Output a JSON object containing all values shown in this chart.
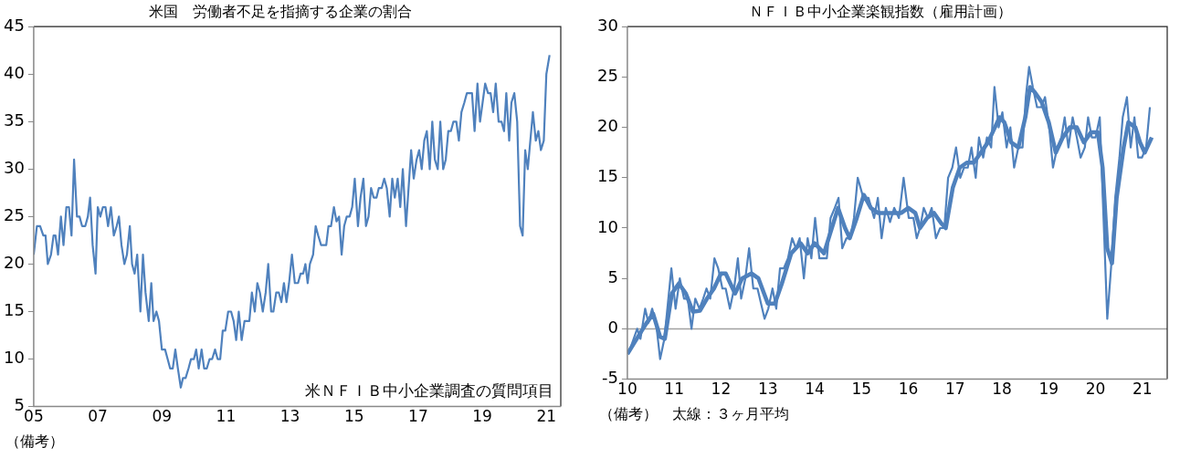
{
  "chart_data": [
    {
      "type": "line",
      "title": "米国　労働者不足を指摘する企業の割合",
      "annotations": [
        "米ＮＦＩＢ中小企業調査の質問項目",
        "（備考）"
      ],
      "xlim": [
        2005,
        2021.45
      ],
      "xticks": [
        {
          "value": 2005,
          "label": "05"
        },
        {
          "value": 2007,
          "label": "07"
        },
        {
          "value": 2009,
          "label": "09"
        },
        {
          "value": 2011,
          "label": "11"
        },
        {
          "value": 2013,
          "label": "13"
        },
        {
          "value": 2015,
          "label": "15"
        },
        {
          "value": 2017,
          "label": "17"
        },
        {
          "value": 2019,
          "label": "19"
        },
        {
          "value": 2021,
          "label": "21"
        }
      ],
      "ylim": [
        5,
        45
      ],
      "yticks": [
        5,
        10,
        15,
        20,
        25,
        30,
        35,
        40,
        45
      ],
      "series": [
        {
          "color": "#4f81bd",
          "x": [
            2005.0,
            2005.1,
            2005.2,
            2005.3,
            2005.37,
            2005.44,
            2005.54,
            2005.62,
            2005.68,
            2005.76,
            2005.85,
            2005.93,
            2006.02,
            2006.1,
            2006.18,
            2006.26,
            2006.35,
            2006.43,
            2006.51,
            2006.61,
            2006.69,
            2006.76,
            2006.84,
            2006.93,
            2007.0,
            2007.08,
            2007.16,
            2007.24,
            2007.32,
            2007.41,
            2007.5,
            2007.59,
            2007.66,
            2007.74,
            2007.83,
            2007.91,
            2008.0,
            2008.07,
            2008.15,
            2008.23,
            2008.33,
            2008.41,
            2008.49,
            2008.59,
            2008.67,
            2008.74,
            2008.83,
            2008.91,
            2009.0,
            2009.1,
            2009.18,
            2009.26,
            2009.34,
            2009.42,
            2009.5,
            2009.59,
            2009.66,
            2009.74,
            2009.83,
            2009.91,
            2010.0,
            2010.07,
            2010.15,
            2010.24,
            2010.32,
            2010.4,
            2010.49,
            2010.57,
            2010.66,
            2010.74,
            2010.82,
            2010.9,
            2010.98,
            2011.07,
            2011.16,
            2011.24,
            2011.32,
            2011.4,
            2011.49,
            2011.58,
            2011.66,
            2011.73,
            2011.81,
            2011.9,
            2011.98,
            2012.06,
            2012.15,
            2012.24,
            2012.32,
            2012.41,
            2012.48,
            2012.57,
            2012.65,
            2012.73,
            2012.81,
            2012.89,
            2012.97,
            2013.06,
            2013.15,
            2013.25,
            2013.33,
            2013.41,
            2013.48,
            2013.55,
            2013.62,
            2013.72,
            2013.8,
            2013.88,
            2013.97,
            2014.13,
            2014.2,
            2014.28,
            2014.37,
            2014.45,
            2014.53,
            2014.61,
            2014.69,
            2014.77,
            2014.86,
            2014.94,
            2015.02,
            2015.12,
            2015.2,
            2015.29,
            2015.37,
            2015.45,
            2015.53,
            2015.61,
            2015.7,
            2015.77,
            2015.86,
            2015.94,
            2016.02,
            2016.11,
            2016.19,
            2016.27,
            2016.36,
            2016.44,
            2016.52,
            2016.62,
            2016.7,
            2016.78,
            2016.86,
            2016.95,
            2017.03,
            2017.11,
            2017.19,
            2017.27,
            2017.36,
            2017.44,
            2017.52,
            2017.61,
            2017.69,
            2017.78,
            2017.86,
            2017.94,
            2018.02,
            2018.1,
            2018.19,
            2018.27,
            2018.35,
            2018.44,
            2018.52,
            2018.6,
            2018.68,
            2018.76,
            2018.85,
            2018.93,
            2019.01,
            2019.09,
            2019.18,
            2019.26,
            2019.34,
            2019.42,
            2019.51,
            2019.6,
            2019.68,
            2019.75,
            2019.84,
            2019.91,
            2020.0,
            2020.09,
            2020.18,
            2020.26,
            2020.34,
            2020.42,
            2020.5,
            2020.58,
            2020.67,
            2020.75,
            2020.83,
            2020.92,
            2021.0,
            2021.1
          ],
          "values": [
            21,
            24,
            24,
            23,
            23,
            20,
            21,
            23,
            23,
            21,
            25,
            22,
            26,
            26,
            23,
            31,
            25,
            25,
            24,
            24,
            25,
            27,
            22,
            19,
            26,
            25,
            26,
            26,
            24,
            26,
            23,
            24,
            25,
            22,
            20,
            21,
            24,
            20,
            19,
            21,
            15,
            21,
            17,
            14,
            18,
            14,
            15,
            14,
            11,
            11,
            10,
            9,
            9,
            11,
            9,
            7,
            8,
            8,
            9,
            10,
            10,
            11,
            9,
            11,
            9,
            9,
            10,
            10,
            11,
            10,
            10,
            13,
            13,
            15,
            15,
            14,
            12,
            15,
            12,
            14,
            14,
            14,
            17,
            15,
            18,
            17,
            15,
            17,
            20,
            15,
            15,
            17,
            17,
            16,
            18,
            16,
            18,
            21,
            18,
            18,
            19,
            19,
            20,
            18,
            20,
            21,
            24,
            23,
            22,
            22,
            24,
            24,
            26,
            24.5,
            25,
            21,
            24,
            25,
            25,
            26,
            29,
            24,
            27,
            29,
            24,
            25,
            28,
            27,
            27,
            28,
            28,
            29,
            28,
            25,
            29,
            27,
            29,
            26,
            30,
            24,
            28,
            32,
            29,
            31,
            32,
            30,
            33,
            34,
            30,
            35,
            31,
            30,
            35,
            30,
            31,
            34,
            34,
            35,
            35,
            33,
            36,
            37,
            38,
            38,
            38,
            34,
            39,
            35,
            37,
            39,
            38,
            38,
            36,
            39,
            35,
            35,
            34,
            38,
            33,
            37,
            38,
            35,
            24,
            23,
            32,
            30,
            33,
            36,
            33,
            34,
            32,
            33,
            40,
            42
          ]
        }
      ]
    },
    {
      "type": "line",
      "title": "ＮＦＩＢ中小企業楽観指数（雇用計画）",
      "annotations": [
        "（備考）　太線：３ヶ月平均"
      ],
      "xlim": [
        2010,
        2021.53
      ],
      "xticks": [
        {
          "value": 2010,
          "label": "10"
        },
        {
          "value": 2011,
          "label": "11"
        },
        {
          "value": 2012,
          "label": "12"
        },
        {
          "value": 2013,
          "label": "13"
        },
        {
          "value": 2014,
          "label": "14"
        },
        {
          "value": 2015,
          "label": "15"
        },
        {
          "value": 2016,
          "label": "16"
        },
        {
          "value": 2017,
          "label": "17"
        },
        {
          "value": 2018,
          "label": "18"
        },
        {
          "value": 2019,
          "label": "19"
        },
        {
          "value": 2020,
          "label": "20"
        },
        {
          "value": 2021,
          "label": "21"
        }
      ],
      "ylim": [
        -5,
        30
      ],
      "yticks": [
        -5,
        0,
        5,
        10,
        15,
        20,
        25,
        30
      ],
      "ref_lines": [
        {
          "axis": "y",
          "value": 0,
          "color": "#a0a0a0"
        }
      ],
      "series": [
        {
          "color": "#4f81bd",
          "x": [
            2010.02,
            2010.21,
            2010.28,
            2010.38,
            2010.45,
            2010.53,
            2010.62,
            2010.7,
            2010.79,
            2010.94,
            2011.03,
            2011.12,
            2011.21,
            2011.29,
            2011.37,
            2011.45,
            2011.54,
            2011.62,
            2011.69,
            2011.77,
            2011.86,
            2011.94,
            2012.03,
            2012.1,
            2012.19,
            2012.28,
            2012.36,
            2012.43,
            2012.52,
            2012.6,
            2012.69,
            2012.78,
            2012.93,
            2013.01,
            2013.1,
            2013.18,
            2013.26,
            2013.34,
            2013.43,
            2013.52,
            2013.6,
            2013.68,
            2013.77,
            2013.85,
            2013.93,
            2014.01,
            2014.1,
            2014.18,
            2014.26,
            2014.34,
            2014.43,
            2014.51,
            2014.59,
            2014.68,
            2014.76,
            2014.84,
            2014.92,
            2015.04,
            2015.15,
            2015.27,
            2015.35,
            2015.43,
            2015.52,
            2015.61,
            2015.7,
            2015.8,
            2015.9,
            2016.01,
            2016.11,
            2016.18,
            2016.25,
            2016.33,
            2016.42,
            2016.5,
            2016.59,
            2016.68,
            2016.77,
            2016.85,
            2016.94,
            2017.02,
            2017.11,
            2017.19,
            2017.27,
            2017.35,
            2017.44,
            2017.51,
            2017.6,
            2017.68,
            2017.77,
            2017.84,
            2017.93,
            2018.01,
            2018.1,
            2018.18,
            2018.26,
            2018.35,
            2018.44,
            2018.51,
            2018.58,
            2018.66,
            2018.75,
            2018.84,
            2018.92,
            2019.01,
            2019.09,
            2019.18,
            2019.27,
            2019.34,
            2019.42,
            2019.51,
            2019.6,
            2019.68,
            2019.77,
            2019.84,
            2019.92,
            2020.0,
            2020.09,
            2020.17,
            2020.25,
            2020.33,
            2020.42,
            2020.51,
            2020.58,
            2020.67,
            2020.75,
            2020.83,
            2020.91,
            2020.99,
            2021.08,
            2021.16
          ],
          "values": [
            -2.5,
            0,
            -1,
            2,
            0.6,
            2,
            0.3,
            -3,
            -1,
            6,
            2,
            5,
            3,
            3,
            0,
            3,
            2,
            3,
            4,
            3,
            7,
            6,
            4,
            4,
            2,
            4,
            7,
            3,
            5,
            8,
            4,
            4,
            1,
            2,
            4,
            2,
            6,
            6,
            7,
            9,
            8,
            9,
            5,
            9,
            7,
            11,
            7,
            7,
            7,
            11,
            12,
            13,
            8,
            9,
            9,
            11,
            15,
            13,
            13,
            11,
            13,
            9,
            12,
            10.6,
            12,
            11,
            15,
            11,
            11,
            9,
            10,
            12,
            11,
            12,
            9,
            10,
            10,
            15,
            16,
            18,
            15,
            16,
            16,
            18,
            15,
            19,
            17,
            19,
            18,
            24,
            20,
            21.5,
            18,
            20,
            16,
            18,
            18,
            23,
            26,
            24,
            22,
            22,
            23,
            20,
            16,
            18,
            19,
            21,
            18,
            21,
            19,
            17,
            18,
            21,
            19,
            19,
            21,
            11,
            1,
            6,
            13,
            17,
            21,
            23,
            18,
            21,
            17,
            17,
            18,
            22
          ]
        },
        {
          "color": "#4f81bd",
          "x": [
            2010.0,
            2010.2,
            2010.4,
            2010.55,
            2010.7,
            2010.8,
            2010.95,
            2011.1,
            2011.25,
            2011.4,
            2011.55,
            2011.7,
            2011.85,
            2012.0,
            2012.1,
            2012.3,
            2012.45,
            2012.65,
            2012.8,
            2013.0,
            2013.15,
            2013.3,
            2013.5,
            2013.7,
            2013.85,
            2014.0,
            2014.2,
            2014.4,
            2014.5,
            2014.65,
            2014.75,
            2014.9,
            2015.05,
            2015.2,
            2015.35,
            2015.5,
            2015.65,
            2015.85,
            2016.0,
            2016.15,
            2016.25,
            2016.4,
            2016.55,
            2016.7,
            2016.8,
            2016.95,
            2017.1,
            2017.25,
            2017.4,
            2017.55,
            2017.7,
            2017.85,
            2017.95,
            2018.05,
            2018.2,
            2018.35,
            2018.5,
            2018.6,
            2018.7,
            2018.85,
            2019.0,
            2019.15,
            2019.3,
            2019.45,
            2019.6,
            2019.75,
            2019.9,
            2020.05,
            2020.15,
            2020.25,
            2020.35,
            2020.45,
            2020.6,
            2020.7,
            2020.85,
            2020.95,
            2021.05,
            2021.15,
            2021.2
          ],
          "values": [
            -2.5,
            -1,
            0.5,
            1.5,
            -0.8,
            -1,
            3.5,
            4.5,
            3.5,
            1.7,
            1.8,
            3,
            4,
            5.5,
            5.5,
            3.5,
            5,
            5.5,
            5,
            2.5,
            2.5,
            4.5,
            7.5,
            8.5,
            7.5,
            8.5,
            7.5,
            10.5,
            12,
            10,
            9,
            11,
            13.3,
            12,
            11.5,
            11.5,
            11.5,
            11.5,
            12,
            11.5,
            10,
            11,
            11.5,
            10.5,
            10,
            14,
            16,
            16.5,
            16.5,
            17.5,
            18.5,
            20,
            21,
            20.5,
            18.5,
            18,
            21,
            24,
            23.5,
            22.5,
            20.5,
            17.5,
            19,
            20,
            20,
            18.5,
            19.5,
            19.5,
            16,
            8,
            6.5,
            13,
            18,
            20.5,
            20,
            18.5,
            17.5,
            18.5,
            19
          ]
        }
      ]
    }
  ]
}
